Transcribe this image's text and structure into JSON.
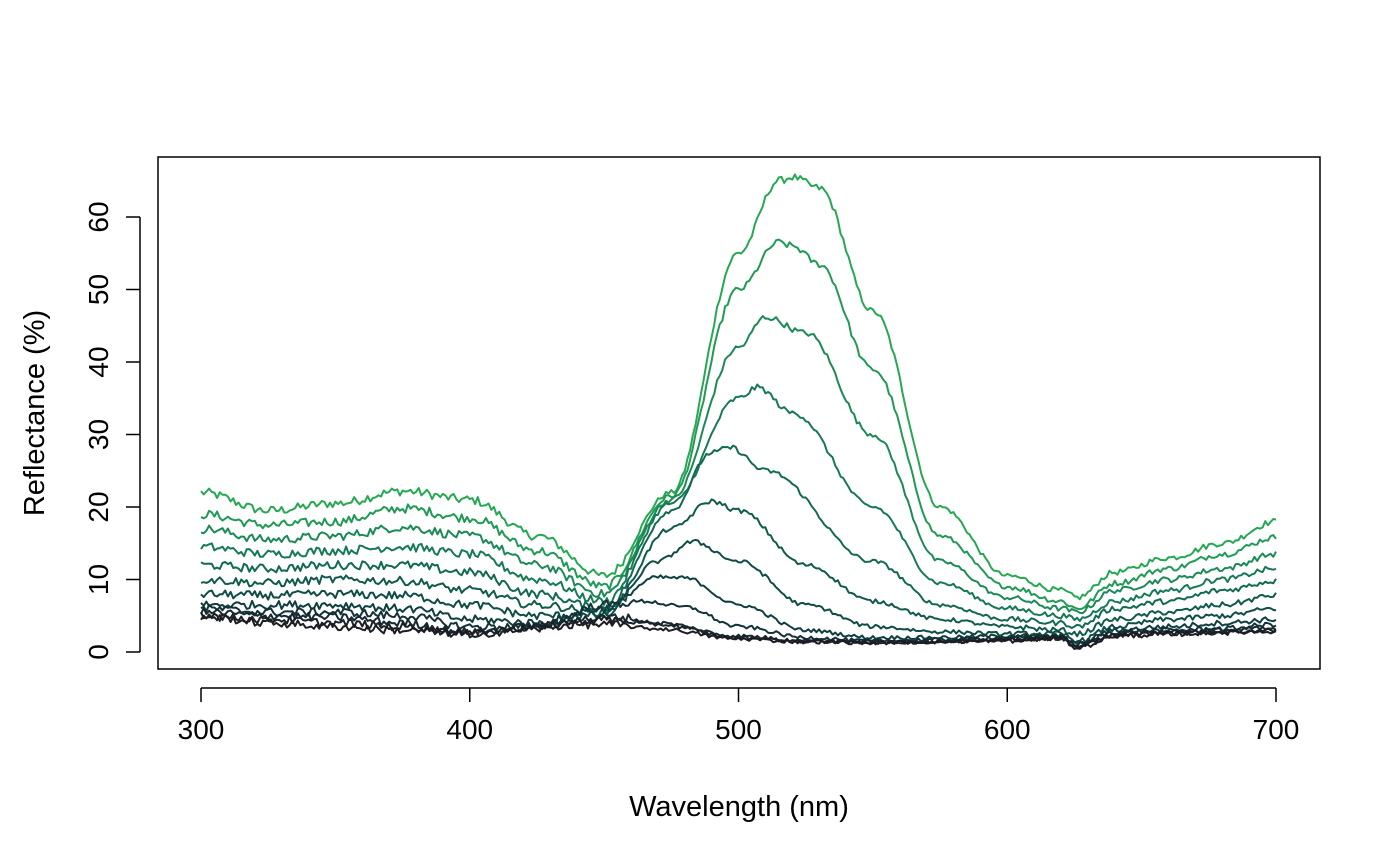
{
  "chart_data": {
    "type": "line",
    "title": "",
    "xlabel": "Wavelength (nm)",
    "ylabel": "Reflectance (%)",
    "xlim": [
      300,
      700
    ],
    "ylim": [
      0,
      65
    ],
    "xticks": [
      300,
      400,
      500,
      600,
      700
    ],
    "yticks": [
      0,
      10,
      20,
      30,
      40,
      50,
      60
    ],
    "grid": false,
    "legend": "none",
    "series": [
      {
        "color": "#26a853",
        "x": [
          300,
          325,
          350,
          375,
          400,
          425,
          450,
          475,
          500,
          515,
          520,
          530,
          550,
          575,
          600,
          620,
          626,
          640,
          660,
          680,
          700
        ],
        "y": [
          22.0,
          19.5,
          20.5,
          22.2,
          21.0,
          16.0,
          10.5,
          22.0,
          55.0,
          65.0,
          65.5,
          64.0,
          47.0,
          20.0,
          10.5,
          8.5,
          7.5,
          11.0,
          13.0,
          15.0,
          18.0
        ]
      },
      {
        "color": "#209a55",
        "x": [
          300,
          325,
          350,
          375,
          400,
          425,
          450,
          475,
          500,
          515,
          520,
          530,
          550,
          575,
          600,
          620,
          626,
          640,
          660,
          680,
          700
        ],
        "y": [
          19.0,
          17.5,
          18.0,
          19.8,
          18.5,
          14.0,
          9.0,
          21.5,
          50.0,
          56.5,
          56.0,
          53.5,
          39.0,
          16.0,
          9.0,
          7.0,
          6.0,
          9.5,
          11.5,
          13.5,
          15.8
        ]
      },
      {
        "color": "#1b8a56",
        "x": [
          300,
          325,
          350,
          375,
          400,
          425,
          450,
          475,
          500,
          510,
          525,
          550,
          575,
          600,
          620,
          626,
          640,
          660,
          680,
          700
        ],
        "y": [
          17.0,
          15.5,
          16.0,
          17.2,
          16.0,
          12.0,
          8.0,
          21.0,
          42.0,
          46.2,
          44.0,
          30.0,
          12.5,
          7.5,
          6.0,
          5.5,
          8.5,
          10.0,
          11.5,
          13.5
        ]
      },
      {
        "color": "#167a54",
        "x": [
          300,
          325,
          350,
          375,
          400,
          425,
          450,
          475,
          500,
          507,
          520,
          550,
          575,
          600,
          620,
          626,
          640,
          660,
          680,
          700
        ],
        "y": [
          14.5,
          13.5,
          14.0,
          14.5,
          13.5,
          10.0,
          7.0,
          20.5,
          35.0,
          36.5,
          33.0,
          20.0,
          9.5,
          6.0,
          5.0,
          4.5,
          7.0,
          8.5,
          10.0,
          11.5
        ]
      },
      {
        "color": "#126a51",
        "x": [
          300,
          325,
          350,
          375,
          400,
          425,
          450,
          475,
          490,
          497,
          510,
          550,
          575,
          600,
          620,
          626,
          640,
          660,
          680,
          700
        ],
        "y": [
          12.0,
          11.5,
          12.0,
          12.0,
          11.0,
          8.0,
          6.0,
          19.5,
          27.5,
          28.2,
          25.0,
          12.5,
          6.5,
          4.5,
          4.0,
          3.5,
          6.0,
          7.0,
          8.5,
          9.8
        ]
      },
      {
        "color": "#105b4c",
        "x": [
          300,
          325,
          350,
          375,
          400,
          425,
          450,
          475,
          490,
          500,
          525,
          550,
          575,
          600,
          620,
          626,
          640,
          660,
          680,
          700
        ],
        "y": [
          10.0,
          9.5,
          10.0,
          9.8,
          8.5,
          6.5,
          5.5,
          17.0,
          20.8,
          19.5,
          12.0,
          7.0,
          4.5,
          3.5,
          3.0,
          2.5,
          4.5,
          5.5,
          6.5,
          7.8
        ]
      },
      {
        "color": "#0f4d47",
        "x": [
          300,
          325,
          350,
          375,
          400,
          425,
          450,
          470,
          483,
          500,
          525,
          550,
          575,
          600,
          620,
          626,
          640,
          660,
          680,
          700
        ],
        "y": [
          8.0,
          7.8,
          8.0,
          7.8,
          6.5,
          5.0,
          5.0,
          12.5,
          15.2,
          12.5,
          6.5,
          3.5,
          2.8,
          2.5,
          2.5,
          1.5,
          3.5,
          4.5,
          5.0,
          6.0
        ]
      },
      {
        "color": "#103f40",
        "x": [
          300,
          325,
          350,
          375,
          400,
          425,
          450,
          470,
          480,
          500,
          525,
          550,
          575,
          600,
          620,
          626,
          640,
          660,
          680,
          700
        ],
        "y": [
          6.5,
          6.5,
          6.5,
          6.0,
          4.5,
          4.0,
          6.0,
          10.3,
          10.2,
          6.5,
          3.0,
          2.0,
          2.0,
          2.2,
          2.2,
          1.2,
          3.0,
          3.5,
          4.0,
          4.5
        ]
      },
      {
        "color": "#133338",
        "x": [
          300,
          325,
          350,
          375,
          400,
          425,
          450,
          465,
          480,
          500,
          525,
          550,
          575,
          600,
          620,
          626,
          640,
          660,
          680,
          700
        ],
        "y": [
          6.0,
          5.5,
          5.5,
          5.0,
          3.5,
          3.5,
          6.5,
          7.0,
          6.2,
          3.5,
          2.0,
          1.5,
          1.7,
          2.0,
          2.0,
          1.0,
          2.8,
          3.0,
          3.2,
          3.8
        ]
      },
      {
        "color": "#162a31",
        "x": [
          300,
          325,
          350,
          375,
          400,
          425,
          440,
          455,
          470,
          500,
          525,
          550,
          575,
          600,
          620,
          626,
          640,
          660,
          680,
          700
        ],
        "y": [
          5.5,
          5.0,
          4.8,
          4.0,
          2.8,
          3.5,
          4.5,
          4.8,
          4.0,
          2.2,
          1.6,
          1.4,
          1.5,
          1.8,
          2.0,
          0.8,
          2.5,
          2.8,
          3.0,
          3.2
        ]
      },
      {
        "color": "#1a2229",
        "x": [
          300,
          325,
          350,
          375,
          400,
          425,
          440,
          450,
          470,
          500,
          525,
          550,
          575,
          600,
          620,
          626,
          640,
          660,
          680,
          700
        ],
        "y": [
          5.0,
          4.5,
          4.0,
          3.5,
          2.5,
          3.5,
          4.2,
          4.5,
          3.8,
          2.0,
          1.5,
          1.3,
          1.4,
          1.7,
          2.0,
          0.7,
          2.3,
          2.6,
          2.8,
          3.0
        ]
      },
      {
        "color": "#1d1c22",
        "x": [
          300,
          325,
          350,
          375,
          400,
          425,
          440,
          450,
          470,
          500,
          525,
          550,
          575,
          600,
          620,
          626,
          640,
          660,
          680,
          700
        ],
        "y": [
          5.0,
          4.0,
          3.5,
          3.0,
          2.5,
          3.2,
          3.8,
          3.8,
          3.2,
          1.8,
          1.4,
          1.3,
          1.4,
          1.6,
          1.9,
          0.6,
          2.2,
          2.5,
          2.7,
          2.9
        ]
      }
    ]
  }
}
